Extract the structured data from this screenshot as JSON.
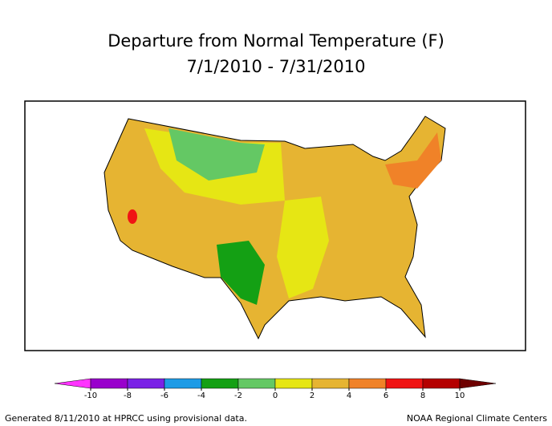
{
  "title": "Departure from Normal Temperature (F)",
  "subtitle": "7/1/2010 - 7/31/2010",
  "legend": {
    "ticks": [
      -10,
      -8,
      -6,
      -4,
      -2,
      0,
      2,
      4,
      6,
      8,
      10
    ],
    "colors": [
      "#ff33ff",
      "#9900cc",
      "#7a22e6",
      "#1e9be6",
      "#14a014",
      "#64c864",
      "#e6e614",
      "#e6b432",
      "#f08228",
      "#f01414",
      "#b40000",
      "#6e0000"
    ]
  },
  "footer": {
    "left": "Generated 8/11/2010 at HPRCC using provisional data.",
    "right": "NOAA Regional Climate Centers"
  }
}
